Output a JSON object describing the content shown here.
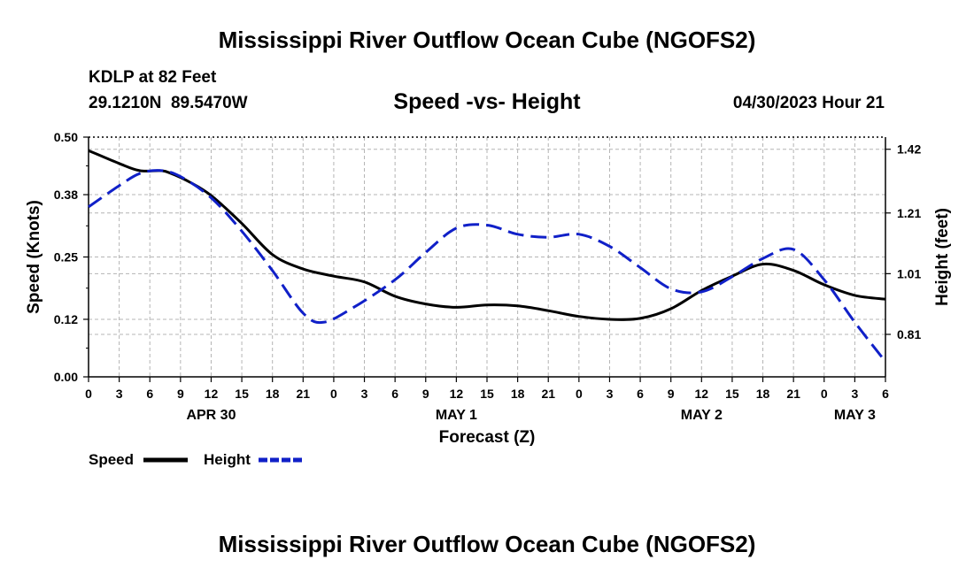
{
  "page": {
    "title": "Mississippi River Outflow Ocean Cube (NGOFS2)",
    "title_repeat": "Mississippi River Outflow Ocean Cube (NGOFS2)",
    "station": "KDLP at 82 Feet",
    "coords": "29.1210N  89.5470W",
    "subtitle": "Speed -vs- Height",
    "datetime": "04/30/2023 Hour 21"
  },
  "chart_data": {
    "type": "line",
    "title": "Speed -vs- Height",
    "xlabel": "Forecast (Z)",
    "ylabel": "Speed (Knots)",
    "y2label": "Height (feet)",
    "x_ticks": [
      "0",
      "3",
      "6",
      "9",
      "12",
      "15",
      "18",
      "21",
      "0",
      "3",
      "6",
      "9",
      "12",
      "15",
      "18",
      "21",
      "0",
      "3",
      "6",
      "9",
      "12",
      "15",
      "18",
      "21",
      "0",
      "3",
      "6"
    ],
    "date_labels": [
      {
        "label": "APR 30",
        "at_hour": 12
      },
      {
        "label": "MAY 1",
        "at_hour": 36
      },
      {
        "label": "MAY 2",
        "at_hour": 60
      },
      {
        "label": "MAY 3",
        "at_hour": 75
      }
    ],
    "xlim": [
      0,
      78
    ],
    "ylim": [
      0,
      0.5
    ],
    "y2lim": [
      0.67,
      1.46
    ],
    "y_ticks": [
      "0.00",
      "0.12",
      "0.25",
      "0.38",
      "0.50"
    ],
    "y2_ticks": [
      "0.81",
      "1.01",
      "1.21",
      "1.42"
    ],
    "legend": [
      {
        "label": "Speed",
        "color": "#000000",
        "style": "solid"
      },
      {
        "label": "Height",
        "color": "#1020c8",
        "style": "dashed"
      }
    ],
    "series": [
      {
        "name": "Speed",
        "axis": "left",
        "color": "#000000",
        "x": [
          0,
          3,
          5,
          7,
          8,
          10,
          12,
          15,
          18,
          21,
          24,
          27,
          30,
          33,
          36,
          39,
          42,
          45,
          48,
          51,
          54,
          57,
          60,
          63,
          66,
          69,
          72,
          75,
          78
        ],
        "values": [
          0.472,
          0.445,
          0.43,
          0.43,
          0.425,
          0.405,
          0.378,
          0.32,
          0.255,
          0.225,
          0.21,
          0.198,
          0.168,
          0.152,
          0.145,
          0.15,
          0.148,
          0.138,
          0.126,
          0.12,
          0.122,
          0.142,
          0.18,
          0.21,
          0.235,
          0.222,
          0.192,
          0.17,
          0.162
        ]
      },
      {
        "name": "Height",
        "axis": "right",
        "color": "#1020c8",
        "x": [
          0,
          3,
          5,
          7,
          9,
          12,
          15,
          18,
          21,
          23,
          26,
          30,
          33,
          36,
          39,
          42,
          45,
          48,
          51,
          54,
          57,
          60,
          63,
          66,
          69,
          72,
          75,
          78
        ],
        "values": [
          1.23,
          1.3,
          1.34,
          1.35,
          1.33,
          1.26,
          1.15,
          1.02,
          0.88,
          0.85,
          0.9,
          0.99,
          1.08,
          1.16,
          1.17,
          1.14,
          1.13,
          1.14,
          1.1,
          1.03,
          0.96,
          0.95,
          1.0,
          1.06,
          1.09,
          0.99,
          0.85,
          0.72
        ]
      }
    ]
  }
}
